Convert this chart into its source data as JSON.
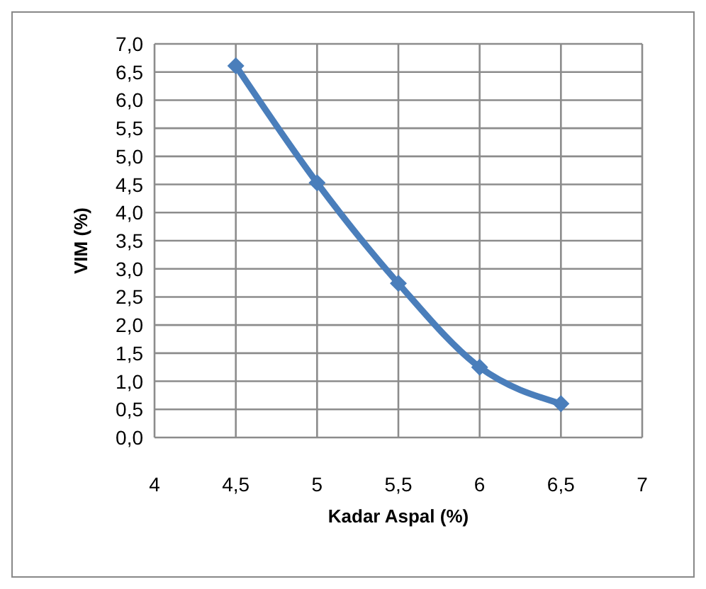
{
  "chart_data": {
    "type": "line",
    "xlabel": "Kadar Aspal (%)",
    "ylabel": "VIM (%)",
    "x": [
      4.5,
      5,
      5.5,
      6,
      6.5
    ],
    "series": [
      {
        "color": "#4a7ebb",
        "values": [
          6.61,
          4.53,
          2.74,
          1.25,
          0.6
        ]
      }
    ],
    "xlim": [
      4,
      7
    ],
    "xticks": [
      4,
      {
        "value": 4.5,
        "label": "4,5"
      },
      5,
      {
        "value": 5.5,
        "label": "5,5"
      },
      6,
      {
        "value": 6.5,
        "label": "6,5"
      },
      7
    ],
    "ylim": [
      0,
      7
    ],
    "yticks": [
      {
        "value": 0,
        "label": "0,0"
      },
      {
        "value": 0.5,
        "label": "0,5"
      },
      {
        "value": 1,
        "label": "1,0"
      },
      {
        "value": 1.5,
        "label": "1,5"
      },
      {
        "value": 2,
        "label": "2,0"
      },
      {
        "value": 2.5,
        "label": "2,5"
      },
      {
        "value": 3,
        "label": "3,0"
      },
      {
        "value": 3.5,
        "label": "3,5"
      },
      {
        "value": 4,
        "label": "4,0"
      },
      {
        "value": 4.5,
        "label": "4,5"
      },
      {
        "value": 5,
        "label": "5,0"
      },
      {
        "value": 5.5,
        "label": "5,5"
      },
      {
        "value": 6,
        "label": "6,0"
      },
      {
        "value": 6.5,
        "label": "6,5"
      },
      {
        "value": 7,
        "label": "7,0"
      }
    ],
    "grid": true,
    "marker": "diamond",
    "line_style": "solid"
  }
}
